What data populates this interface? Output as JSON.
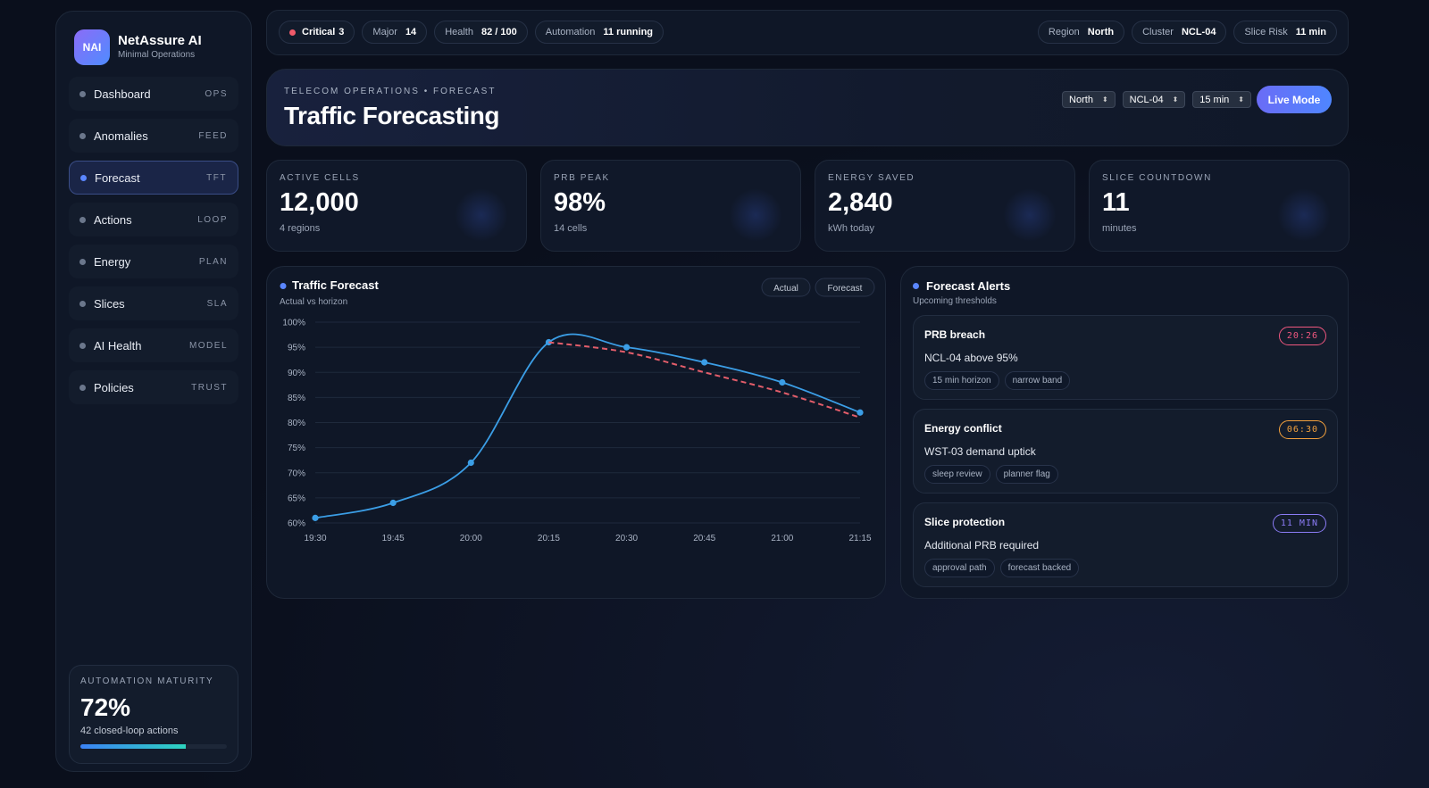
{
  "brand": {
    "logo": "NAI",
    "name": "NetAssure AI",
    "tagline": "Minimal Operations"
  },
  "nav": [
    {
      "label": "Dashboard",
      "tag": "OPS"
    },
    {
      "label": "Anomalies",
      "tag": "FEED"
    },
    {
      "label": "Forecast",
      "tag": "TFT",
      "active": true
    },
    {
      "label": "Actions",
      "tag": "LOOP"
    },
    {
      "label": "Energy",
      "tag": "PLAN"
    },
    {
      "label": "Slices",
      "tag": "SLA"
    },
    {
      "label": "AI Health",
      "tag": "MODEL"
    },
    {
      "label": "Policies",
      "tag": "TRUST"
    }
  ],
  "maturity": {
    "label": "AUTOMATION MATURITY",
    "value": 72,
    "value_label": "72%",
    "note": "42 closed-loop actions"
  },
  "status_left": [
    {
      "label": "Critical",
      "value": "3",
      "alert": true
    },
    {
      "label": "Major",
      "value": "14"
    },
    {
      "label": "Health",
      "value": "82 / 100"
    },
    {
      "label": "Automation",
      "value": "11 running"
    }
  ],
  "status_right": [
    {
      "label": "Region",
      "value": "North"
    },
    {
      "label": "Cluster",
      "value": "NCL-04"
    },
    {
      "label": "Slice Risk",
      "value": "11 min"
    }
  ],
  "header": {
    "eyebrow": "TELECOM OPERATIONS • FORECAST",
    "title": "Traffic Forecasting",
    "selects": [
      "North",
      "NCL-04",
      "15 min"
    ],
    "button": "Live Mode"
  },
  "kpis": [
    {
      "label": "ACTIVE CELLS",
      "value": "12,000",
      "note": "4 regions"
    },
    {
      "label": "PRB PEAK",
      "value": "98%",
      "note": "14 cells"
    },
    {
      "label": "ENERGY SAVED",
      "value": "2,840",
      "note": "kWh today"
    },
    {
      "label": "SLICE COUNTDOWN",
      "value": "11",
      "note": "minutes"
    }
  ],
  "chart_data": {
    "type": "line",
    "title": "Traffic Forecast",
    "subtitle": "Actual vs horizon",
    "categories": [
      "19:30",
      "19:45",
      "20:00",
      "20:15",
      "20:30",
      "20:45",
      "21:00",
      "21:15"
    ],
    "series": [
      {
        "name": "Actual",
        "color": "#3b9ee6",
        "values": [
          61,
          64,
          72,
          96,
          95,
          92,
          88,
          82
        ]
      },
      {
        "name": "Forecast",
        "color": "#e35d6a",
        "dashed": true,
        "values": [
          null,
          null,
          null,
          96,
          94,
          90,
          86,
          81
        ]
      }
    ],
    "ylim": [
      60,
      100
    ],
    "yticks": [
      {
        "value": 60,
        "label": "60%"
      },
      {
        "value": 65,
        "label": "65%"
      },
      {
        "value": 70,
        "label": "70%"
      },
      {
        "value": 75,
        "label": "75%"
      },
      {
        "value": 80,
        "label": "80%"
      },
      {
        "value": 85,
        "label": "85%"
      },
      {
        "value": 90,
        "label": "90%"
      },
      {
        "value": 95,
        "label": "95%"
      },
      {
        "value": 100,
        "label": "100%"
      }
    ],
    "grid": true
  },
  "alerts": {
    "title": "Forecast Alerts",
    "subtitle": "Upcoming thresholds",
    "items": [
      {
        "title": "PRB breach",
        "badge": "20:26",
        "badge_color": "#f0577f",
        "text": "NCL-04 above 95%",
        "tags": [
          "15 min horizon",
          "narrow band"
        ]
      },
      {
        "title": "Energy conflict",
        "badge": "06:30",
        "badge_color": "#f2a03d",
        "text": "WST-03 demand uptick",
        "tags": [
          "sleep review",
          "planner flag"
        ]
      },
      {
        "title": "Slice protection",
        "badge": "11 MIN",
        "badge_color": "#8b7cf6",
        "text": "Additional PRB required",
        "tags": [
          "approval path",
          "forecast backed"
        ]
      }
    ]
  }
}
